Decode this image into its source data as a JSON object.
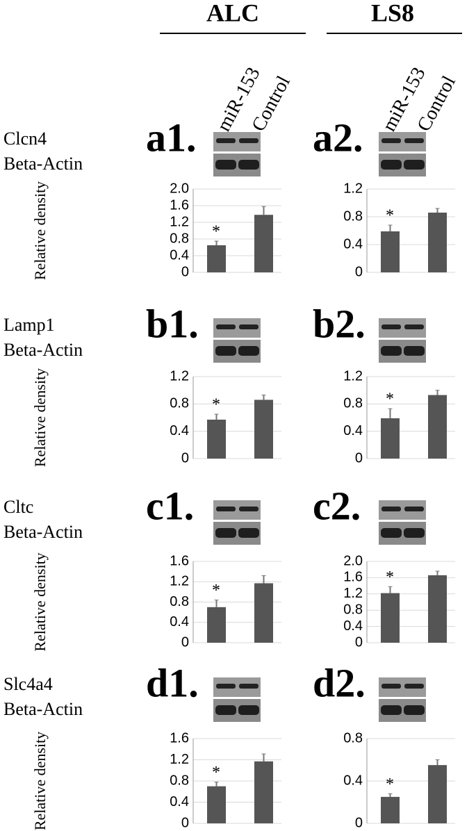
{
  "columns": [
    {
      "title": "ALC",
      "lanes": [
        "miR-153",
        "Control"
      ]
    },
    {
      "title": "LS8",
      "lanes": [
        "miR-153",
        "Control"
      ]
    }
  ],
  "rows": [
    {
      "protein": "Clcn4",
      "loading": "Beta-Actin"
    },
    {
      "protein": "Lamp1",
      "loading": "Beta-Actin"
    },
    {
      "protein": "Cltc",
      "loading": "Beta-Actin"
    },
    {
      "protein": "Slc4a4",
      "loading": "Beta-Actin"
    }
  ],
  "chart_data": [
    {
      "type": "bar",
      "label": "a1.",
      "ylabel": "Relative density",
      "categories": [
        null,
        null
      ],
      "values": [
        0.65,
        1.38
      ],
      "errors": [
        0.1,
        0.2
      ],
      "annotation": "*",
      "color": "#555555",
      "grid": true,
      "ylim": [
        0,
        2
      ],
      "yticks": [
        0,
        0.4,
        0.8,
        1.2,
        1.6,
        {
          "value": 2,
          "label": "2.0"
        }
      ]
    },
    {
      "type": "bar",
      "label": "a2.",
      "categories": [
        null,
        null
      ],
      "values": [
        0.59,
        0.86
      ],
      "errors": [
        0.09,
        0.06
      ],
      "annotation": "*",
      "color": "#555555",
      "grid": true,
      "ylim": [
        0,
        1.2
      ],
      "yticks": [
        0,
        0.4,
        0.8,
        1.2
      ]
    },
    {
      "type": "bar",
      "label": "b1.",
      "ylabel": "Relative density",
      "categories": [
        null,
        null
      ],
      "values": [
        0.57,
        0.86
      ],
      "errors": [
        0.08,
        0.07
      ],
      "annotation": "*",
      "color": "#555555",
      "grid": true,
      "ylim": [
        0,
        1.2
      ],
      "yticks": [
        0,
        0.4,
        0.8,
        1.2
      ]
    },
    {
      "type": "bar",
      "label": "b2.",
      "categories": [
        null,
        null
      ],
      "values": [
        0.59,
        0.93
      ],
      "errors": [
        0.14,
        0.07
      ],
      "annotation": "*",
      "color": "#555555",
      "grid": true,
      "ylim": [
        0,
        1.2
      ],
      "yticks": [
        0,
        0.4,
        0.8,
        1.2
      ]
    },
    {
      "type": "bar",
      "label": "c1.",
      "ylabel": "Relative density",
      "categories": [
        null,
        null
      ],
      "values": [
        0.7,
        1.17
      ],
      "errors": [
        0.14,
        0.15
      ],
      "annotation": "*",
      "color": "#555555",
      "grid": true,
      "ylim": [
        0,
        1.6
      ],
      "yticks": [
        0,
        0.4,
        0.8,
        1.2,
        1.6
      ]
    },
    {
      "type": "bar",
      "label": "c2.",
      "categories": [
        null,
        null
      ],
      "values": [
        1.22,
        1.66
      ],
      "errors": [
        0.16,
        0.1
      ],
      "annotation": "*",
      "color": "#555555",
      "grid": true,
      "ylim": [
        0,
        2
      ],
      "yticks": [
        0,
        0.4,
        0.8,
        1.2,
        1.6,
        {
          "value": 2,
          "label": "2.0"
        }
      ]
    },
    {
      "type": "bar",
      "label": "d1.",
      "ylabel": "Relative density",
      "categories": [
        null,
        null
      ],
      "values": [
        0.7,
        1.17
      ],
      "errors": [
        0.08,
        0.14
      ],
      "annotation": "*",
      "color": "#555555",
      "grid": true,
      "ylim": [
        0,
        1.6
      ],
      "yticks": [
        0,
        0.4,
        0.8,
        1.2,
        1.6
      ]
    },
    {
      "type": "bar",
      "label": "d2.",
      "categories": [
        null,
        null
      ],
      "values": [
        0.25,
        0.55
      ],
      "errors": [
        0.03,
        0.05
      ],
      "annotation": "*",
      "color": "#555555",
      "grid": true,
      "ylim": [
        0,
        0.8
      ],
      "yticks": [
        0,
        0.4,
        0.8
      ]
    }
  ]
}
